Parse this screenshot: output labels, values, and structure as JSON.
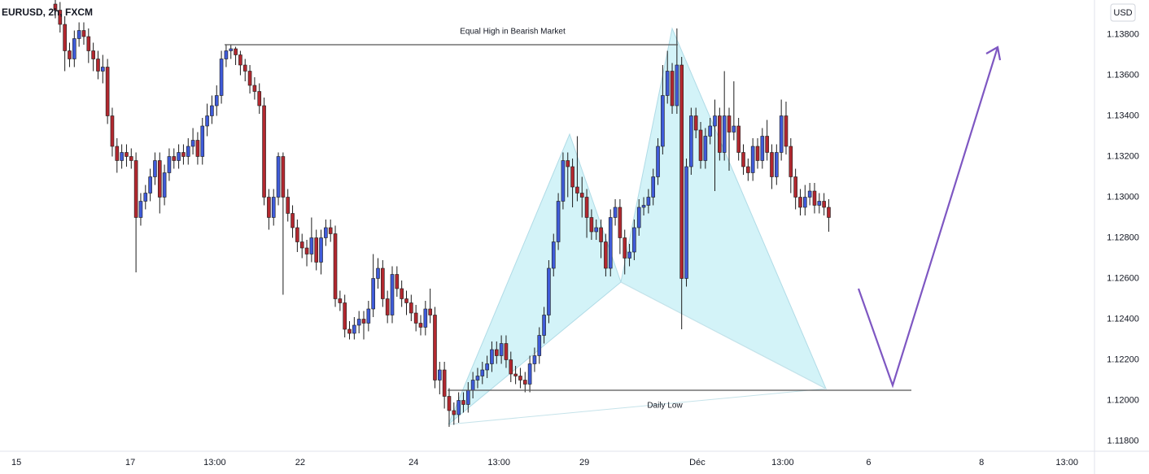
{
  "chart_data": {
    "type": "candlestick",
    "title": "EURUSD, 2h, FXCM",
    "currency": "USD",
    "up_color": "#3f5bd9",
    "down_color": "#b2282f",
    "annotations": [
      "Equal High in Bearish Market",
      "Daily Low"
    ],
    "ylim": [
      1.1175,
      1.1397
    ],
    "yticks": [
      {
        "value": 1.118,
        "label": "1.11800"
      },
      {
        "value": 1.12,
        "label": "1.12000"
      },
      {
        "value": 1.122,
        "label": "1.12200"
      },
      {
        "value": 1.124,
        "label": "1.12400"
      },
      {
        "value": 1.126,
        "label": "1.12600"
      },
      {
        "value": 1.128,
        "label": "1.12800"
      },
      {
        "value": 1.13,
        "label": "1.13000"
      },
      {
        "value": 1.132,
        "label": "1.13200"
      },
      {
        "value": 1.134,
        "label": "1.13400"
      },
      {
        "value": 1.136,
        "label": "1.13600"
      },
      {
        "value": 1.138,
        "label": "1.13800"
      }
    ],
    "xlim": [
      -11.66,
      219.0
    ],
    "xticks": [
      {
        "value": -8.2,
        "label": "15"
      },
      {
        "value": 15.8,
        "label": "17"
      },
      {
        "value": 33.6,
        "label": "13:00"
      },
      {
        "value": 51.6,
        "label": "22"
      },
      {
        "value": 75.5,
        "label": "24"
      },
      {
        "value": 93.5,
        "label": "13:00"
      },
      {
        "value": 111.5,
        "label": "29"
      },
      {
        "value": 135.3,
        "label": "Déc"
      },
      {
        "value": 153.3,
        "label": "13:00"
      },
      {
        "value": 171.4,
        "label": "6"
      },
      {
        "value": 195.2,
        "label": "8"
      },
      {
        "value": 213.2,
        "label": "13:00"
      }
    ],
    "grid": false,
    "open": [
      1.1395,
      1.1392,
      1.1385,
      1.1372,
      1.1368,
      1.1378,
      1.1382,
      1.1379,
      1.1372,
      1.1368,
      1.1362,
      1.1364,
      1.134,
      1.1325,
      1.1318,
      1.1322,
      1.132,
      1.1318,
      1.129,
      1.1298,
      1.1302,
      1.131,
      1.1318,
      1.13,
      1.1312,
      1.132,
      1.1318,
      1.1322,
      1.132,
      1.1325,
      1.1328,
      1.132,
      1.1335,
      1.134,
      1.1345,
      1.135,
      1.1368,
      1.1372,
      1.1373,
      1.137,
      1.1365,
      1.1362,
      1.1355,
      1.1352,
      1.1345,
      1.13,
      1.129,
      1.13,
      1.132,
      1.13,
      1.1292,
      1.1285,
      1.1278,
      1.1275,
      1.1272,
      1.128,
      1.1268,
      1.128,
      1.1285,
      1.1282,
      1.125,
      1.1248,
      1.1235,
      1.1233,
      1.1237,
      1.124,
      1.1238,
      1.1245,
      1.126,
      1.1265,
      1.125,
      1.1242,
      1.1262,
      1.1255,
      1.125,
      1.1248,
      1.1243,
      1.1238,
      1.1236,
      1.1245,
      1.1242,
      1.121,
      1.1215,
      1.1202,
      1.1195,
      1.1193,
      1.12,
      1.1198,
      1.1205,
      1.121,
      1.1212,
      1.1215,
      1.1218,
      1.1225,
      1.1222,
      1.1228,
      1.122,
      1.1213,
      1.1212,
      1.121,
      1.1208,
      1.1218,
      1.1222,
      1.1232,
      1.1242,
      1.1265,
      1.1278,
      1.1298,
      1.1318,
      1.1315,
      1.1305,
      1.1302,
      1.13,
      1.129,
      1.1283,
      1.1285,
      1.1278,
      1.1265,
      1.129,
      1.1295,
      1.128,
      1.127,
      1.1273,
      1.1285,
      1.1295,
      1.1296,
      1.13,
      1.131,
      1.1325,
      1.135,
      1.1362,
      1.1345,
      1.1365,
      1.126,
      1.1315,
      1.134,
      1.1333,
      1.1318,
      1.133,
      1.1335,
      1.134,
      1.1322,
      1.134,
      1.1332,
      1.1335,
      1.1322,
      1.1315,
      1.1312,
      1.1325,
      1.1318,
      1.133,
      1.1322,
      1.131,
      1.1322,
      1.134,
      1.1325,
      1.131,
      1.13,
      1.1295,
      1.13,
      1.1303,
      1.1296,
      1.1298,
      1.1295
    ],
    "high": [
      1.1399,
      1.1396,
      1.1389,
      1.1376,
      1.1382,
      1.1386,
      1.1386,
      1.1383,
      1.1376,
      1.1372,
      1.137,
      1.1368,
      1.1344,
      1.1329,
      1.1326,
      1.1326,
      1.1324,
      1.1322,
      1.1302,
      1.1306,
      1.1314,
      1.1322,
      1.1322,
      1.1316,
      1.1324,
      1.1324,
      1.1326,
      1.1326,
      1.1329,
      1.1334,
      1.1332,
      1.1339,
      1.1346,
      1.135,
      1.1355,
      1.1372,
      1.1375,
      1.1375,
      1.1374,
      1.1372,
      1.1368,
      1.1365,
      1.1359,
      1.1356,
      1.1349,
      1.1304,
      1.1304,
      1.1322,
      1.1322,
      1.1304,
      1.1296,
      1.1289,
      1.1282,
      1.1279,
      1.129,
      1.1284,
      1.1284,
      1.1289,
      1.1289,
      1.1286,
      1.1254,
      1.1252,
      1.1239,
      1.1241,
      1.1244,
      1.1244,
      1.1249,
      1.1272,
      1.127,
      1.1269,
      1.1254,
      1.1266,
      1.1266,
      1.1259,
      1.1254,
      1.1252,
      1.1247,
      1.1242,
      1.1249,
      1.1255,
      1.1246,
      1.1219,
      1.1219,
      1.1206,
      1.1199,
      1.1204,
      1.1204,
      1.1209,
      1.1214,
      1.1216,
      1.1219,
      1.1222,
      1.1229,
      1.1229,
      1.1232,
      1.1232,
      1.1224,
      1.1217,
      1.1216,
      1.1214,
      1.1222,
      1.1226,
      1.1236,
      1.1246,
      1.1269,
      1.1282,
      1.1302,
      1.1322,
      1.1322,
      1.1319,
      1.133,
      1.131,
      1.1304,
      1.1294,
      1.1289,
      1.1289,
      1.1282,
      1.1294,
      1.1299,
      1.1299,
      1.1284,
      1.1277,
      1.1289,
      1.1299,
      1.13,
      1.1304,
      1.1314,
      1.1329,
      1.1365,
      1.1372,
      1.1366,
      1.1383,
      1.1369,
      1.1319,
      1.1344,
      1.1344,
      1.1337,
      1.1334,
      1.1339,
      1.1348,
      1.1344,
      1.1362,
      1.1344,
      1.1357,
      1.1339,
      1.1326,
      1.1319,
      1.1329,
      1.1329,
      1.1334,
      1.1338,
      1.1326,
      1.1326,
      1.1348,
      1.1347,
      1.1329,
      1.1314,
      1.1304,
      1.1306,
      1.1307,
      1.1307,
      1.1302,
      1.1302,
      1.1299
    ],
    "low": [
      1.1388,
      1.1381,
      1.1362,
      1.1364,
      1.1364,
      1.1374,
      1.1375,
      1.1366,
      1.1362,
      1.1358,
      1.1356,
      1.1336,
      1.132,
      1.1312,
      1.1314,
      1.1315,
      1.1314,
      1.1263,
      1.1286,
      1.1294,
      1.1298,
      1.1306,
      1.1292,
      1.1296,
      1.1308,
      1.1314,
      1.1314,
      1.1316,
      1.1316,
      1.1321,
      1.1316,
      1.1316,
      1.133,
      1.1336,
      1.134,
      1.1346,
      1.1364,
      1.1368,
      1.1365,
      1.136,
      1.1357,
      1.1351,
      1.1348,
      1.1341,
      1.1296,
      1.1284,
      1.1286,
      1.1296,
      1.1252,
      1.1288,
      1.128,
      1.1273,
      1.127,
      1.1266,
      1.1268,
      1.1264,
      1.1262,
      1.1276,
      1.1278,
      1.1246,
      1.1244,
      1.1231,
      1.123,
      1.123,
      1.1233,
      1.123,
      1.1234,
      1.1241,
      1.1255,
      1.1246,
      1.1238,
      1.1238,
      1.1251,
      1.1246,
      1.1242,
      1.1239,
      1.1234,
      1.1232,
      1.1232,
      1.1238,
      1.1206,
      1.1203,
      1.1196,
      1.1187,
      1.1188,
      1.1189,
      1.1194,
      1.1194,
      1.1201,
      1.1206,
      1.1208,
      1.1211,
      1.1214,
      1.1218,
      1.1218,
      1.1216,
      1.1209,
      1.1208,
      1.1206,
      1.1204,
      1.1204,
      1.1214,
      1.1218,
      1.1228,
      1.1238,
      1.1261,
      1.1274,
      1.1294,
      1.13,
      1.1295,
      1.1298,
      1.129,
      1.128,
      1.1279,
      1.1279,
      1.127,
      1.1261,
      1.1261,
      1.1286,
      1.1272,
      1.1262,
      1.1266,
      1.1269,
      1.1281,
      1.1291,
      1.1292,
      1.1296,
      1.1306,
      1.1321,
      1.1346,
      1.1341,
      1.1341,
      1.1235,
      1.1256,
      1.1311,
      1.1329,
      1.1314,
      1.1314,
      1.1326,
      1.1303,
      1.1318,
      1.1318,
      1.1313,
      1.1328,
      1.1318,
      1.1311,
      1.1308,
      1.1308,
      1.1314,
      1.1314,
      1.1318,
      1.1304,
      1.1306,
      1.1318,
      1.1321,
      1.1302,
      1.1294,
      1.1291,
      1.1291,
      1.1296,
      1.1292,
      1.1292,
      1.1291,
      1.1283
    ],
    "close": [
      1.1392,
      1.1385,
      1.1372,
      1.1368,
      1.1378,
      1.1382,
      1.1379,
      1.1372,
      1.1368,
      1.1362,
      1.1364,
      1.134,
      1.1325,
      1.1318,
      1.1322,
      1.132,
      1.1318,
      1.129,
      1.1298,
      1.1302,
      1.131,
      1.1318,
      1.13,
      1.1312,
      1.132,
      1.1318,
      1.1322,
      1.132,
      1.1325,
      1.1328,
      1.132,
      1.1335,
      1.134,
      1.1345,
      1.135,
      1.1368,
      1.1372,
      1.1373,
      1.137,
      1.1365,
      1.1362,
      1.1355,
      1.1352,
      1.1345,
      1.13,
      1.129,
      1.13,
      1.132,
      1.13,
      1.1292,
      1.1285,
      1.1278,
      1.1275,
      1.1272,
      1.128,
      1.1268,
      1.128,
      1.1285,
      1.1282,
      1.125,
      1.1248,
      1.1235,
      1.1233,
      1.1237,
      1.124,
      1.1238,
      1.1245,
      1.126,
      1.1265,
      1.125,
      1.1242,
      1.1262,
      1.1255,
      1.125,
      1.1248,
      1.1243,
      1.1238,
      1.1236,
      1.1245,
      1.1242,
      1.121,
      1.1215,
      1.1202,
      1.1195,
      1.1193,
      1.12,
      1.1198,
      1.1205,
      1.121,
      1.1212,
      1.1215,
      1.1218,
      1.1225,
      1.1222,
      1.1228,
      1.122,
      1.1213,
      1.1212,
      1.121,
      1.1208,
      1.1218,
      1.1222,
      1.1232,
      1.1242,
      1.1265,
      1.1278,
      1.1298,
      1.1318,
      1.1315,
      1.1305,
      1.1302,
      1.13,
      1.129,
      1.1283,
      1.1285,
      1.1278,
      1.1265,
      1.129,
      1.1295,
      1.128,
      1.127,
      1.1273,
      1.1285,
      1.1295,
      1.1296,
      1.13,
      1.131,
      1.1325,
      1.135,
      1.1362,
      1.1345,
      1.1365,
      1.126,
      1.1315,
      1.134,
      1.1333,
      1.1318,
      1.133,
      1.1335,
      1.134,
      1.1322,
      1.134,
      1.1332,
      1.1335,
      1.1322,
      1.1315,
      1.1312,
      1.1325,
      1.1318,
      1.133,
      1.1322,
      1.131,
      1.1322,
      1.134,
      1.1325,
      1.131,
      1.13,
      1.1295,
      1.13,
      1.1303,
      1.1296,
      1.1298,
      1.1295,
      1.129
    ]
  }
}
